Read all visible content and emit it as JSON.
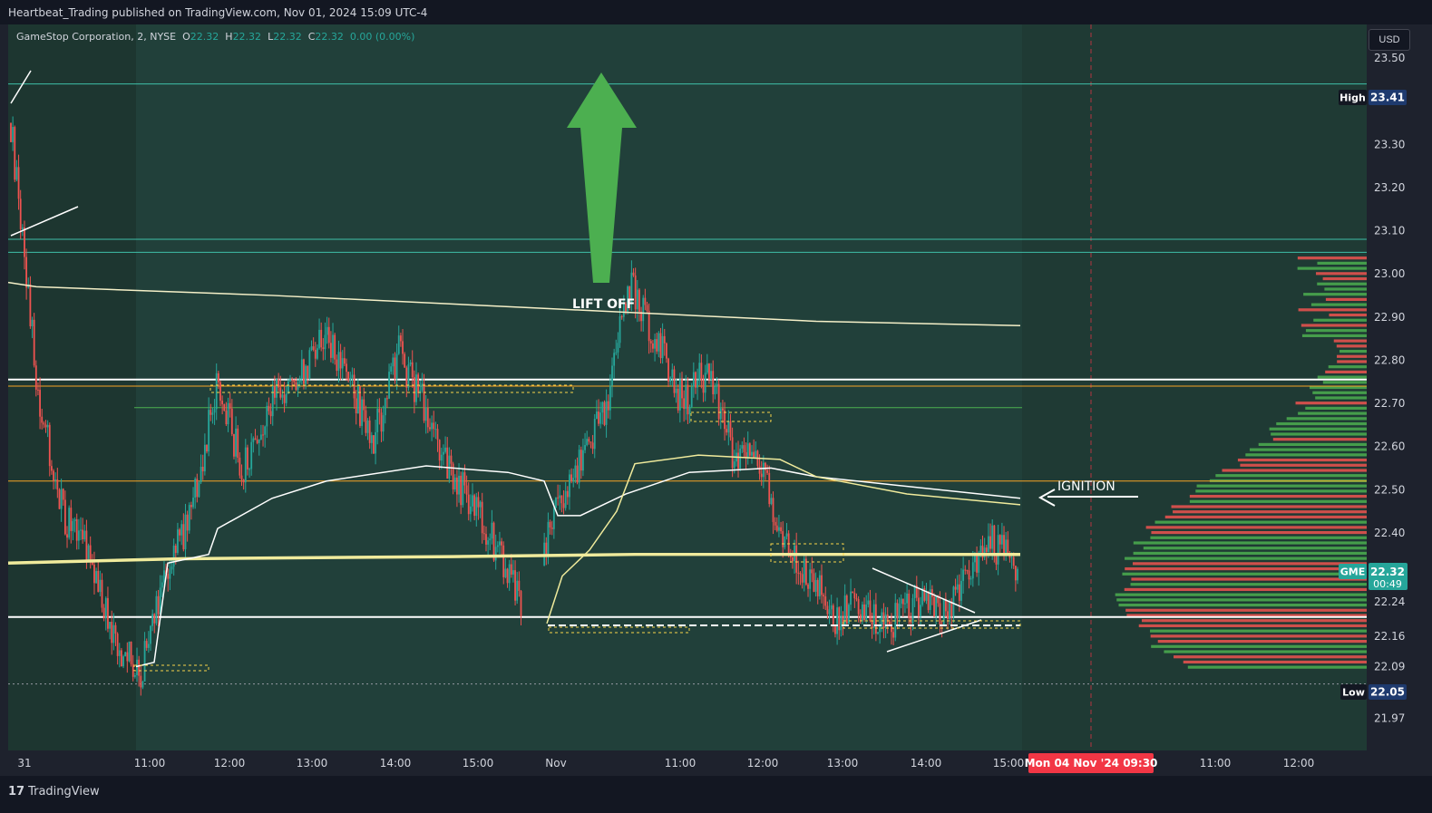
{
  "header": {
    "published": "Heartbeat_Trading published on TradingView.com, Nov 01, 2024 15:09 UTC-4"
  },
  "legend": {
    "symbol": "GameStop Corporation, 2, NYSE",
    "o_label": "O",
    "o": "22.32",
    "h_label": "H",
    "h": "22.32",
    "l_label": "L",
    "l": "22.32",
    "c_label": "C",
    "c": "22.32",
    "change": "0.00 (0.00%)"
  },
  "currency": "USD",
  "badges": {
    "high_label": "High",
    "high_value": "23.41",
    "low_label": "Low",
    "low_value": "22.05",
    "ticker": "GME",
    "price": "22.32",
    "countdown": "00:49",
    "date_marker": "Mon 04 Nov '24   09:30"
  },
  "annotations": {
    "lift_off": "LIFT OFF",
    "ignition": "IGNITION"
  },
  "footer": {
    "brand": "TradingView"
  },
  "colors": {
    "up": "#26a69a",
    "down": "#ef5350",
    "vwap": "#f0eb9c",
    "accent_red": "#f23645",
    "orange": "#f7a325",
    "background": "#1f3a34"
  },
  "chart_data": {
    "type": "candlestick",
    "symbol": "GME",
    "interval": "2",
    "y_ticks": [
      23.5,
      23.4,
      23.3,
      23.2,
      23.1,
      23.0,
      22.9,
      22.8,
      22.7,
      22.6,
      22.5,
      22.4,
      22.24,
      22.16,
      22.09,
      22.03,
      21.97
    ],
    "x_ticks": [
      "31",
      "11:00",
      "12:00",
      "13:00",
      "14:00",
      "15:00",
      "Nov",
      "11:00",
      "12:00",
      "13:00",
      "14:00",
      "15:00",
      "11:00",
      "12:00"
    ],
    "ylim": [
      21.93,
      23.55
    ],
    "horizontal_levels": [
      {
        "price": 23.44,
        "color": "teal"
      },
      {
        "price": 23.08,
        "color": "teal"
      },
      {
        "price": 23.05,
        "color": "teal"
      },
      {
        "price": 22.755,
        "color": "white"
      },
      {
        "price": 22.74,
        "color": "orange"
      },
      {
        "price": 22.69,
        "color": "green"
      },
      {
        "price": 22.52,
        "color": "orange"
      },
      {
        "price": 22.205,
        "color": "white"
      },
      {
        "price": 22.05,
        "color": "dotted"
      }
    ],
    "close_path": [
      [
        "31",
        23.35
      ],
      [
        "31",
        22.75
      ],
      [
        "31",
        22.45
      ],
      [
        "31",
        22.35
      ],
      [
        "11:00",
        22.15
      ],
      [
        "11:00",
        22.07
      ],
      [
        "11:00",
        22.3
      ],
      [
        "11:00",
        22.45
      ],
      [
        "12:00",
        22.75
      ],
      [
        "12:00",
        22.55
      ],
      [
        "12:00",
        22.7
      ],
      [
        "13:00",
        22.75
      ],
      [
        "13:00",
        22.85
      ],
      [
        "13:00",
        22.78
      ],
      [
        "14:00",
        22.6
      ],
      [
        "14:00",
        22.82
      ],
      [
        "14:00",
        22.7
      ],
      [
        "15:00",
        22.55
      ],
      [
        "15:00",
        22.45
      ],
      [
        "15:00",
        22.35
      ],
      [
        "Nov",
        22.2
      ],
      [
        "Nov",
        22.45
      ],
      [
        "Nov",
        22.55
      ],
      [
        "Nov",
        22.68
      ],
      [
        "Nov",
        22.98
      ],
      [
        "Nov",
        22.85
      ],
      [
        "11:00",
        22.7
      ],
      [
        "11:00",
        22.78
      ],
      [
        "11:00",
        22.58
      ],
      [
        "12:00",
        22.55
      ],
      [
        "12:00",
        22.38
      ],
      [
        "13:00",
        22.3
      ],
      [
        "13:00",
        22.2
      ],
      [
        "13:00",
        22.24
      ],
      [
        "14:00",
        22.18
      ],
      [
        "14:00",
        22.24
      ],
      [
        "14:00",
        22.22
      ],
      [
        "15:00",
        22.28
      ],
      [
        "15:00",
        22.38
      ],
      [
        "15:00",
        22.32
      ]
    ]
  }
}
